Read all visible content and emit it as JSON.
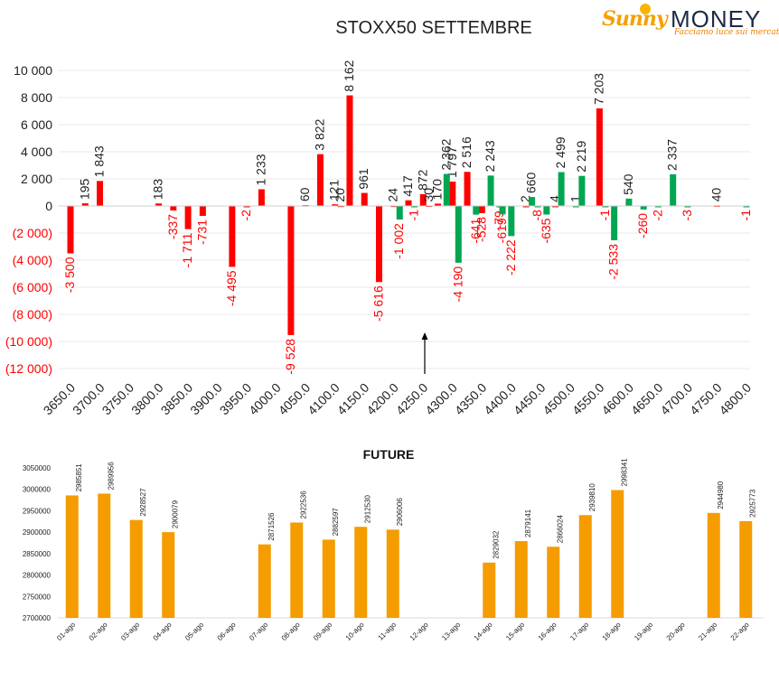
{
  "logo": {
    "brand_a": "Sunny",
    "brand_b": "MONEY",
    "tagline": "Facciamo luce sui mercati"
  },
  "colors": {
    "call": "#ff0000",
    "put": "#00a651",
    "future": "#f59c00",
    "grid": "#e8e8e8",
    "negative_label": "#ff0000"
  },
  "chart_data": [
    {
      "type": "bar",
      "title": "STOXX50 SETTEMBRE",
      "categories": [
        "3650.0",
        "3700.0",
        "3750.0",
        "3800.0",
        "3850.0",
        "3900.0",
        "3950.0",
        "4000.0",
        "4050.0",
        "4100.0",
        "4150.0",
        "4200.0",
        "4250.0",
        "4300.0",
        "4350.0",
        "4400.0",
        "4450.0",
        "4500.0",
        "4550.0",
        "4600.0",
        "4650.0",
        "4700.0",
        "4750.0",
        "4800.0"
      ],
      "ylim": [
        -12000,
        10000
      ],
      "yticks": [
        10000,
        8000,
        6000,
        4000,
        2000,
        0,
        -2000,
        -4000,
        -6000,
        -8000,
        -10000,
        -12000
      ],
      "ytick_labels": [
        "10 000",
        "8 000",
        "6 000",
        "4 000",
        "2 000",
        "0",
        "(2 000)",
        "(4 000)",
        "(6 000)",
        "(8 000)",
        "(10 000)",
        "(12 000)"
      ],
      "grid": true,
      "series": [
        {
          "color": "red",
          "points": [
            {
              "x": 3650,
              "y": -3500,
              "label": "-3 500"
            },
            {
              "x": 3675,
              "y": 195,
              "label": "195"
            },
            {
              "x": 3700,
              "y": 1843,
              "label": "1 843"
            },
            {
              "x": 3800,
              "y": 183,
              "label": "183"
            },
            {
              "x": 3825,
              "y": -337,
              "label": "-337"
            },
            {
              "x": 3850,
              "y": -1711,
              "label": "-1 711"
            },
            {
              "x": 3875,
              "y": -731,
              "label": "-731"
            },
            {
              "x": 3925,
              "y": -4495,
              "label": "-4 495"
            },
            {
              "x": 3950,
              "y": -2,
              "label": "-2"
            },
            {
              "x": 3975,
              "y": 1233,
              "label": "1 233"
            },
            {
              "x": 4025,
              "y": -9528,
              "label": "-9 528"
            },
            {
              "x": 4050,
              "y": 60,
              "label": "60"
            },
            {
              "x": 4075,
              "y": 3822,
              "label": "3 822"
            },
            {
              "x": 4100,
              "y": 121,
              "label": "121"
            },
            {
              "x": 4110,
              "y": 20,
              "label": "20"
            },
            {
              "x": 4125,
              "y": 8162,
              "label": "8 162"
            },
            {
              "x": 4150,
              "y": 961,
              "label": "961"
            },
            {
              "x": 4175,
              "y": -5616,
              "label": "-5 616"
            },
            {
              "x": 4200,
              "y": 24,
              "label": "24"
            },
            {
              "x": 4225,
              "y": 417,
              "label": "417"
            },
            {
              "x": 4250,
              "y": 872,
              "label": "872"
            },
            {
              "x": 4260,
              "y": 30,
              "label": "30"
            },
            {
              "x": 4275,
              "y": 170,
              "label": "170"
            },
            {
              "x": 4300,
              "y": 1797,
              "label": "1 797"
            },
            {
              "x": 4325,
              "y": 2516,
              "label": "2 516"
            },
            {
              "x": 4350,
              "y": -528,
              "label": "-528"
            },
            {
              "x": 4425,
              "y": 2,
              "label": "2"
            },
            {
              "x": 4475,
              "y": 4,
              "label": "4"
            },
            {
              "x": 4550,
              "y": 7203,
              "label": "7 203"
            },
            {
              "x": 4750,
              "y": 40,
              "label": "40"
            }
          ]
        },
        {
          "color": "green",
          "points": [
            {
              "x": 4210,
              "y": -1002,
              "label": "-1 002"
            },
            {
              "x": 4235,
              "y": -1,
              "label": "-1"
            },
            {
              "x": 4290,
              "y": 2362,
              "label": "2 362"
            },
            {
              "x": 4310,
              "y": -4190,
              "label": "-4 190"
            },
            {
              "x": 4340,
              "y": -641,
              "label": "-641"
            },
            {
              "x": 4365,
              "y": 2243,
              "label": "2 243"
            },
            {
              "x": 4380,
              "y": -79,
              "label": "-79"
            },
            {
              "x": 4385,
              "y": -619,
              "label": "-619"
            },
            {
              "x": 4400,
              "y": -2222,
              "label": "-2 222"
            },
            {
              "x": 4435,
              "y": 660,
              "label": "660"
            },
            {
              "x": 4445,
              "y": -8,
              "label": "-8"
            },
            {
              "x": 4460,
              "y": -635,
              "label": "-635"
            },
            {
              "x": 4485,
              "y": 2499,
              "label": "2 499"
            },
            {
              "x": 4510,
              "y": 1,
              "label": "1"
            },
            {
              "x": 4520,
              "y": 2219,
              "label": "2 219"
            },
            {
              "x": 4560,
              "y": -1,
              "label": "-1"
            },
            {
              "x": 4575,
              "y": -2533,
              "label": "-2 533"
            },
            {
              "x": 4600,
              "y": 540,
              "label": "540"
            },
            {
              "x": 4625,
              "y": -260,
              "label": "-260"
            },
            {
              "x": 4650,
              "y": -2,
              "label": "-2"
            },
            {
              "x": 4675,
              "y": 2337,
              "label": "2 337"
            },
            {
              "x": 4700,
              "y": -3,
              "label": "-3"
            },
            {
              "x": 4800,
              "y": -1,
              "label": "-1"
            }
          ]
        }
      ],
      "annotations": [
        "arrow pointing to 4250"
      ]
    },
    {
      "type": "bar",
      "title": "FUTURE",
      "categories": [
        "01-ago",
        "02-ago",
        "03-ago",
        "04-ago",
        "05-ago",
        "06-ago",
        "07-ago",
        "08-ago",
        "09-ago",
        "10-ago",
        "11-ago",
        "12-ago",
        "13-ago",
        "14-ago",
        "15-ago",
        "16-ago",
        "17-ago",
        "18-ago",
        "19-ago",
        "20-ago",
        "21-ago",
        "22-ago"
      ],
      "values": [
        2985851,
        2989956,
        2928527,
        2900079,
        null,
        null,
        2871526,
        2922536,
        2882597,
        2912530,
        2906006,
        null,
        null,
        2829032,
        2879141,
        2866024,
        2939810,
        2998341,
        null,
        null,
        2944980,
        2925773
      ],
      "ylim": [
        2700000,
        3050000
      ],
      "yticks": [
        3050000,
        3000000,
        2950000,
        2900000,
        2850000,
        2800000,
        2750000,
        2700000
      ],
      "ytick_labels": [
        "3050000",
        "3000000",
        "2950000",
        "2900000",
        "2850000",
        "2800000",
        "2750000",
        "2700000"
      ],
      "grid": false
    }
  ]
}
